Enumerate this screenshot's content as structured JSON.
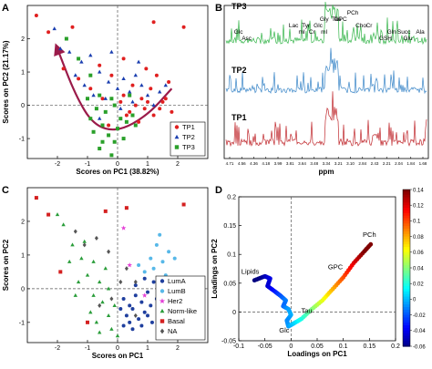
{
  "panel_labels": [
    "A",
    "B",
    "C",
    "D"
  ],
  "chart_data": [
    {
      "panel": "A",
      "type": "scatter",
      "xlabel": "Scores on PC1 (38.82%)",
      "ylabel": "Scores on PC2 (21.17%)",
      "xlim": [
        -3,
        3
      ],
      "ylim": [
        -1.6,
        3
      ],
      "xticks": [
        -2,
        -1,
        0,
        1,
        2
      ],
      "yticks": [
        -1,
        0,
        1,
        2
      ],
      "reference_lines": {
        "x": 0,
        "y": 0
      },
      "legend": {
        "placement": "bottom-right"
      },
      "series": [
        {
          "name": "TP1",
          "marker": "circle",
          "color": "#e02020",
          "points": [
            [
              -2.7,
              2.7
            ],
            [
              -2.3,
              2.2
            ],
            [
              -1.5,
              2.35
            ],
            [
              1.2,
              2.5
            ],
            [
              2.2,
              2.35
            ],
            [
              -1.8,
              1.1
            ],
            [
              -1.3,
              0.8
            ],
            [
              -0.9,
              0.5
            ],
            [
              -0.5,
              0.2
            ],
            [
              -0.2,
              0.9
            ],
            [
              0.2,
              0.3
            ],
            [
              0.5,
              0.6
            ],
            [
              0.8,
              0.2
            ],
            [
              1.1,
              0.5
            ],
            [
              1.3,
              0.9
            ],
            [
              1.6,
              0.2
            ],
            [
              0.4,
              -0.2
            ],
            [
              0.9,
              -0.1
            ],
            [
              1.2,
              -0.3
            ],
            [
              0.7,
              -0.5
            ],
            [
              1.5,
              0.1
            ],
            [
              1.0,
              0.1
            ],
            [
              0.6,
              0.0
            ],
            [
              1.4,
              -0.1
            ],
            [
              0.3,
              -0.3
            ],
            [
              0.2,
              1.4
            ],
            [
              -0.6,
              1.2
            ],
            [
              1.7,
              0.7
            ],
            [
              0.95,
              1.1
            ],
            [
              -0.3,
              -0.6
            ],
            [
              1.8,
              -0.2
            ],
            [
              0.1,
              0.1
            ]
          ]
        },
        {
          "name": "TP2",
          "marker": "triangle",
          "color": "#1b3fb0",
          "points": [
            [
              -2.1,
              2.3
            ],
            [
              -1.9,
              1.7
            ],
            [
              -1.6,
              1.6
            ],
            [
              -1.2,
              1.3
            ],
            [
              -0.9,
              1.5
            ],
            [
              -0.6,
              1.0
            ],
            [
              -0.3,
              0.7
            ],
            [
              0.0,
              0.5
            ],
            [
              0.2,
              0.8
            ],
            [
              0.4,
              0.4
            ],
            [
              0.6,
              0.9
            ],
            [
              0.8,
              0.6
            ],
            [
              1.0,
              0.3
            ],
            [
              1.2,
              0.0
            ],
            [
              1.4,
              0.4
            ],
            [
              0.1,
              -0.1
            ],
            [
              -0.4,
              0.2
            ],
            [
              -0.8,
              0.3
            ],
            [
              -1.1,
              0.6
            ],
            [
              -0.2,
              1.6
            ],
            [
              0.7,
              1.3
            ],
            [
              -0.6,
              -0.4
            ],
            [
              0.5,
              0.1
            ],
            [
              1.6,
              0.6
            ],
            [
              -1.4,
              0.9
            ]
          ]
        },
        {
          "name": "TP3",
          "marker": "square",
          "color": "#2aa02a",
          "points": [
            [
              -1.7,
              2.0
            ],
            [
              -1.3,
              1.4
            ],
            [
              -0.9,
              0.9
            ],
            [
              -0.6,
              0.3
            ],
            [
              -0.5,
              -0.6
            ],
            [
              -0.3,
              -0.9
            ],
            [
              -0.1,
              -1.1
            ],
            [
              -0.6,
              -1.3
            ],
            [
              -0.2,
              -1.5
            ],
            [
              0.0,
              -0.7
            ],
            [
              0.3,
              -0.5
            ],
            [
              0.5,
              -0.3
            ],
            [
              -0.4,
              -0.2
            ],
            [
              -0.8,
              -0.8
            ],
            [
              0.2,
              -1.0
            ],
            [
              -0.1,
              0.0
            ],
            [
              0.4,
              0.3
            ],
            [
              -1.0,
              0.2
            ],
            [
              -0.7,
              -0.1
            ],
            [
              0.1,
              -0.4
            ],
            [
              -0.5,
              -1.1
            ],
            [
              -0.2,
              0.2
            ],
            [
              0.6,
              -0.6
            ],
            [
              -0.9,
              -0.4
            ]
          ]
        }
      ],
      "trajectory_arrow": {
        "color": "#9b1b4a",
        "path": [
          [
            1.8,
            0.5
          ],
          [
            1.0,
            -0.3
          ],
          [
            0.0,
            -0.8
          ],
          [
            -0.8,
            -0.6
          ],
          [
            -1.4,
            0.3
          ],
          [
            -2.0,
            1.7
          ]
        ]
      }
    },
    {
      "panel": "B",
      "type": "line",
      "xlabel": "ppm",
      "x_tick_labels": [
        "4.71",
        "4.56",
        "4.36",
        "4.18",
        "3.99",
        "3.81",
        "3.64",
        "3.48",
        "3.34",
        "3.21",
        "3.10",
        "2.84",
        "2.43",
        "2.21",
        "2.04",
        "1.84",
        "1.68"
      ],
      "series": [
        {
          "name": "TP3",
          "color": "#35b54a"
        },
        {
          "name": "TP2",
          "color": "#3a86c8"
        },
        {
          "name": "TP1",
          "color": "#c0282d"
        }
      ],
      "peak_labels": [
        "PCh",
        "Tau",
        "GPC",
        "Gly",
        "Cho",
        "Cr",
        "Lac",
        "Tyr",
        "Glc",
        "mI",
        "Cr",
        "mI",
        "Glc",
        "Asc",
        "GSH",
        "Gln",
        "Succ",
        "Glu",
        "Ala"
      ]
    },
    {
      "panel": "C",
      "type": "scatter",
      "xlabel": "Scores on PC1",
      "ylabel": "Scores on PC2",
      "xlim": [
        -3,
        3
      ],
      "ylim": [
        -1.6,
        3
      ],
      "xticks": [
        -2,
        -1,
        0,
        1,
        2
      ],
      "yticks": [
        -1,
        0,
        1,
        2
      ],
      "reference_lines": {
        "x": 0,
        "y": 0
      },
      "legend": {
        "placement": "bottom-right"
      },
      "series": [
        {
          "name": "LumA",
          "marker": "circle",
          "color": "#1f3f9e",
          "points": [
            [
              0.2,
              -0.3
            ],
            [
              0.5,
              -0.6
            ],
            [
              0.8,
              -0.4
            ],
            [
              1.0,
              -0.1
            ],
            [
              1.2,
              0.2
            ],
            [
              0.4,
              -1.0
            ],
            [
              0.7,
              -0.9
            ],
            [
              0.9,
              -0.7
            ],
            [
              1.1,
              -0.5
            ],
            [
              0.3,
              -0.8
            ],
            [
              0.6,
              -0.2
            ],
            [
              1.3,
              -0.3
            ],
            [
              0.1,
              -0.6
            ],
            [
              0.5,
              -1.2
            ],
            [
              0.8,
              -1.1
            ],
            [
              1.0,
              -0.8
            ],
            [
              0.2,
              -1.1
            ],
            [
              1.4,
              0.0
            ],
            [
              0.6,
              0.1
            ],
            [
              0.9,
              0.3
            ],
            [
              0.4,
              -0.5
            ],
            [
              1.15,
              -1.0
            ]
          ]
        },
        {
          "name": "LumB",
          "marker": "circle",
          "color": "#57b8e8",
          "points": [
            [
              1.5,
              0.8
            ],
            [
              1.7,
              1.1
            ],
            [
              1.2,
              0.6
            ],
            [
              0.9,
              0.5
            ],
            [
              1.6,
              0.4
            ],
            [
              1.3,
              1.3
            ],
            [
              1.9,
              0.9
            ],
            [
              1.1,
              0.9
            ],
            [
              0.7,
              0.7
            ],
            [
              1.4,
              1.6
            ]
          ]
        },
        {
          "name": "Her2",
          "marker": "star",
          "color": "#e43fd6",
          "points": [
            [
              0.2,
              1.8
            ],
            [
              0.4,
              0.7
            ],
            [
              0.9,
              -0.2
            ]
          ]
        },
        {
          "name": "Norm-like",
          "marker": "triangle",
          "color": "#2a9d3a",
          "points": [
            [
              -1.8,
              1.9
            ],
            [
              -1.5,
              1.3
            ],
            [
              -1.2,
              0.9
            ],
            [
              -1.0,
              0.4
            ],
            [
              -0.8,
              0.8
            ],
            [
              -0.6,
              0.2
            ],
            [
              -0.5,
              -0.4
            ],
            [
              -0.3,
              -0.8
            ],
            [
              -0.2,
              -1.2
            ],
            [
              -0.6,
              -1.3
            ],
            [
              -0.9,
              -0.7
            ],
            [
              -1.3,
              0.2
            ],
            [
              -0.4,
              0.6
            ],
            [
              -0.1,
              -0.5
            ],
            [
              -0.7,
              -1.0
            ],
            [
              0.0,
              -1.4
            ],
            [
              -1.6,
              0.8
            ],
            [
              -1.1,
              1.4
            ],
            [
              -0.3,
              0.0
            ],
            [
              -0.8,
              -0.2
            ],
            [
              -2.0,
              2.2
            ],
            [
              -1.4,
              -0.2
            ]
          ]
        },
        {
          "name": "Basal",
          "marker": "square",
          "color": "#d42020",
          "points": [
            [
              -2.7,
              2.7
            ],
            [
              -2.3,
              2.2
            ],
            [
              -0.4,
              2.3
            ],
            [
              0.3,
              2.4
            ],
            [
              2.2,
              2.5
            ],
            [
              -1.0,
              -1.0
            ],
            [
              1.5,
              -0.5
            ],
            [
              -1.9,
              0.5
            ]
          ]
        },
        {
          "name": "NA",
          "marker": "diamond",
          "color": "#555555",
          "points": [
            [
              -1.4,
              1.7
            ],
            [
              -1.1,
              1.3
            ],
            [
              -0.7,
              1.5
            ],
            [
              -0.3,
              1.1
            ],
            [
              0.3,
              0.6
            ],
            [
              0.6,
              0.2
            ],
            [
              -0.2,
              -0.3
            ],
            [
              -0.6,
              -0.5
            ],
            [
              0.1,
              0.2
            ],
            [
              0.6,
              -0.8
            ]
          ]
        }
      ]
    },
    {
      "panel": "D",
      "type": "scatter",
      "xlabel": "Loadings on PC1",
      "ylabel": "Loadings on PC2",
      "xlim": [
        -0.1,
        0.2
      ],
      "ylim": [
        -0.05,
        0.2
      ],
      "xticks": [
        -0.1,
        -0.05,
        0,
        0.05,
        0.1,
        0.15,
        0.2
      ],
      "x_tick_labels": [
        "-0.1",
        "-0.05",
        "0",
        "0.05",
        "0.1",
        "0.15",
        "0.2"
      ],
      "yticks": [
        -0.05,
        0,
        0.05,
        0.1,
        0.15,
        0.2
      ],
      "y_tick_labels": [
        "-0.05",
        "0",
        "0.05",
        "0.1",
        "0.15",
        "0.2"
      ],
      "reference_lines": {
        "x": 0,
        "y": 0
      },
      "annotations": [
        {
          "text": "Lipids",
          "x": -0.078,
          "y": 0.066
        },
        {
          "text": "GPC",
          "x": 0.085,
          "y": 0.074
        },
        {
          "text": "PCh",
          "x": 0.15,
          "y": 0.13
        },
        {
          "text": "Tau",
          "x": 0.03,
          "y": -0.002
        },
        {
          "text": "Glc",
          "x": -0.013,
          "y": -0.036
        }
      ],
      "loading_curve": [
        [
          -0.07,
          0.055
        ],
        [
          -0.05,
          0.062
        ],
        [
          -0.04,
          0.058
        ],
        [
          -0.045,
          0.045
        ],
        [
          -0.03,
          0.035
        ],
        [
          -0.02,
          0.028
        ],
        [
          -0.01,
          0.02
        ],
        [
          -0.015,
          0.01
        ],
        [
          -0.005,
          0.005
        ],
        [
          0.0,
          -0.005
        ],
        [
          -0.008,
          -0.015
        ],
        [
          -0.005,
          -0.025
        ],
        [
          0.005,
          -0.02
        ],
        [
          0.02,
          -0.012
        ],
        [
          0.04,
          0.005
        ],
        [
          0.06,
          0.02
        ],
        [
          0.08,
          0.04
        ],
        [
          0.1,
          0.06
        ],
        [
          0.12,
          0.085
        ],
        [
          0.14,
          0.105
        ],
        [
          0.155,
          0.12
        ]
      ],
      "colorbar": {
        "min": -0.06,
        "max": 0.14,
        "ticks": [
          -0.06,
          -0.04,
          -0.02,
          0,
          0.02,
          0.04,
          0.06,
          0.08,
          0.1,
          0.12,
          0.14
        ],
        "tick_labels": [
          "-0.06",
          "-0.04",
          "-0.02",
          "0",
          "0.02",
          "0.04",
          "0.06",
          "0.08",
          "0.1",
          "0.12",
          "0.14"
        ]
      }
    }
  ]
}
